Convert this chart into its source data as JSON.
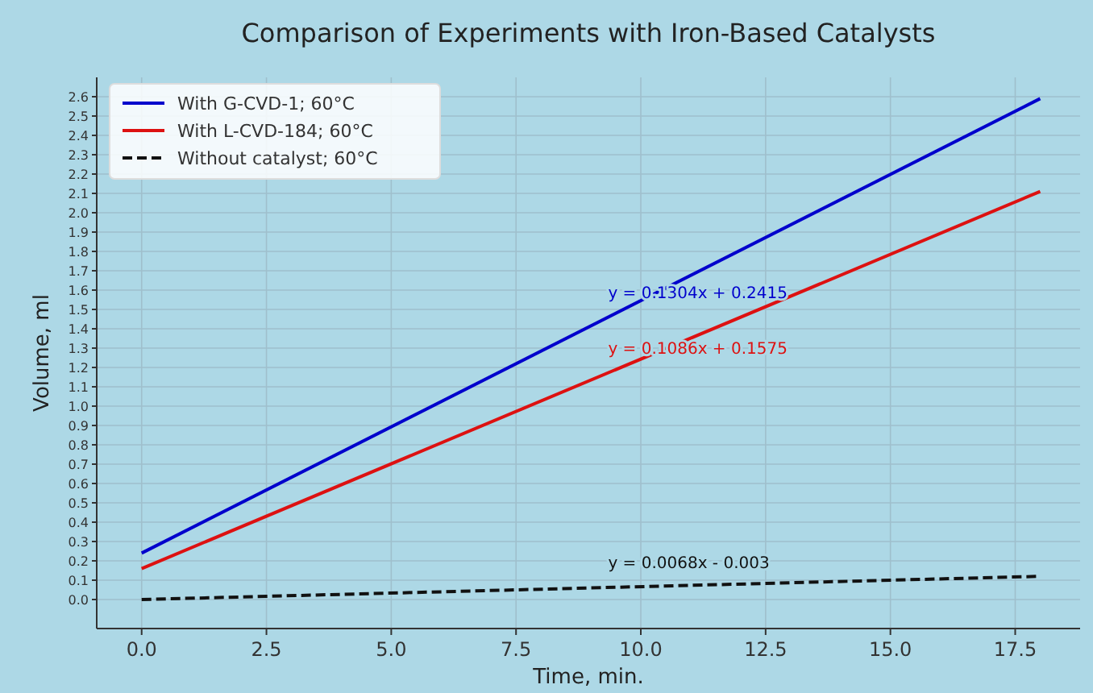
{
  "chart_data": {
    "type": "line",
    "title": "Comparison of Experiments with Iron-Based Catalysts",
    "xlabel": "Time, min.",
    "ylabel": "Volume, ml",
    "x": [
      0,
      18
    ],
    "series": [
      {
        "name": "With G-CVD-1; 60°C",
        "color": "#0000cc",
        "values": [
          0.24,
          2.59
        ]
      },
      {
        "name": "With L-CVD-184; 60°C",
        "color": "#dd1111",
        "values": [
          0.16,
          2.11
        ]
      },
      {
        "name": "Without catalyst; 60°C",
        "color": "#111111",
        "values": [
          0.0,
          0.12
        ],
        "line_style": "dashed"
      }
    ],
    "annotations": [
      "y = 0.1304x + 0.2415",
      "y = 0.1086x + 0.1575",
      "y = 0.0068x - 0.003"
    ],
    "xlim": [
      -0.9,
      18.8
    ],
    "xticks": [
      {
        "value": 0,
        "label": "0.0"
      },
      {
        "value": 2.5,
        "label": "2.5"
      },
      {
        "value": 5,
        "label": "5.0"
      },
      {
        "value": 7.5,
        "label": "7.5"
      },
      {
        "value": 10,
        "label": "10.0"
      },
      {
        "value": 12.5,
        "label": "12.5"
      },
      {
        "value": 15,
        "label": "15.0"
      },
      {
        "value": 17.5,
        "label": "17.5"
      }
    ],
    "ylim": [
      -0.15,
      2.7
    ],
    "yticks": [
      {
        "value": 0,
        "label": "0.0"
      },
      {
        "value": 0.1,
        "label": "0.1"
      },
      {
        "value": 0.2,
        "label": "0.2"
      },
      {
        "value": 0.3,
        "label": "0.3"
      },
      {
        "value": 0.4,
        "label": "0.4"
      },
      {
        "value": 0.5,
        "label": "0.5"
      },
      {
        "value": 0.6,
        "label": "0.6"
      },
      {
        "value": 0.7,
        "label": "0.7"
      },
      {
        "value": 0.8,
        "label": "0.8"
      },
      {
        "value": 0.9,
        "label": "0.9"
      },
      {
        "value": 1,
        "label": "1.0"
      },
      {
        "value": 1.1,
        "label": "1.1"
      },
      {
        "value": 1.2,
        "label": "1.2"
      },
      {
        "value": 1.3,
        "label": "1.3"
      },
      {
        "value": 1.4,
        "label": "1.4"
      },
      {
        "value": 1.5,
        "label": "1.5"
      },
      {
        "value": 1.6,
        "label": "1.6"
      },
      {
        "value": 1.7,
        "label": "1.7"
      },
      {
        "value": 1.8,
        "label": "1.8"
      },
      {
        "value": 1.9,
        "label": "1.9"
      },
      {
        "value": 2,
        "label": "2.0"
      },
      {
        "value": 2.1,
        "label": "2.1"
      },
      {
        "value": 2.2,
        "label": "2.2"
      },
      {
        "value": 2.3,
        "label": "2.3"
      },
      {
        "value": 2.4,
        "label": "2.4"
      },
      {
        "value": 2.5,
        "label": "2.5"
      },
      {
        "value": 2.6,
        "label": "2.6"
      }
    ],
    "grid": true,
    "legend": "top left",
    "marker": "none",
    "line_style": "solid"
  }
}
